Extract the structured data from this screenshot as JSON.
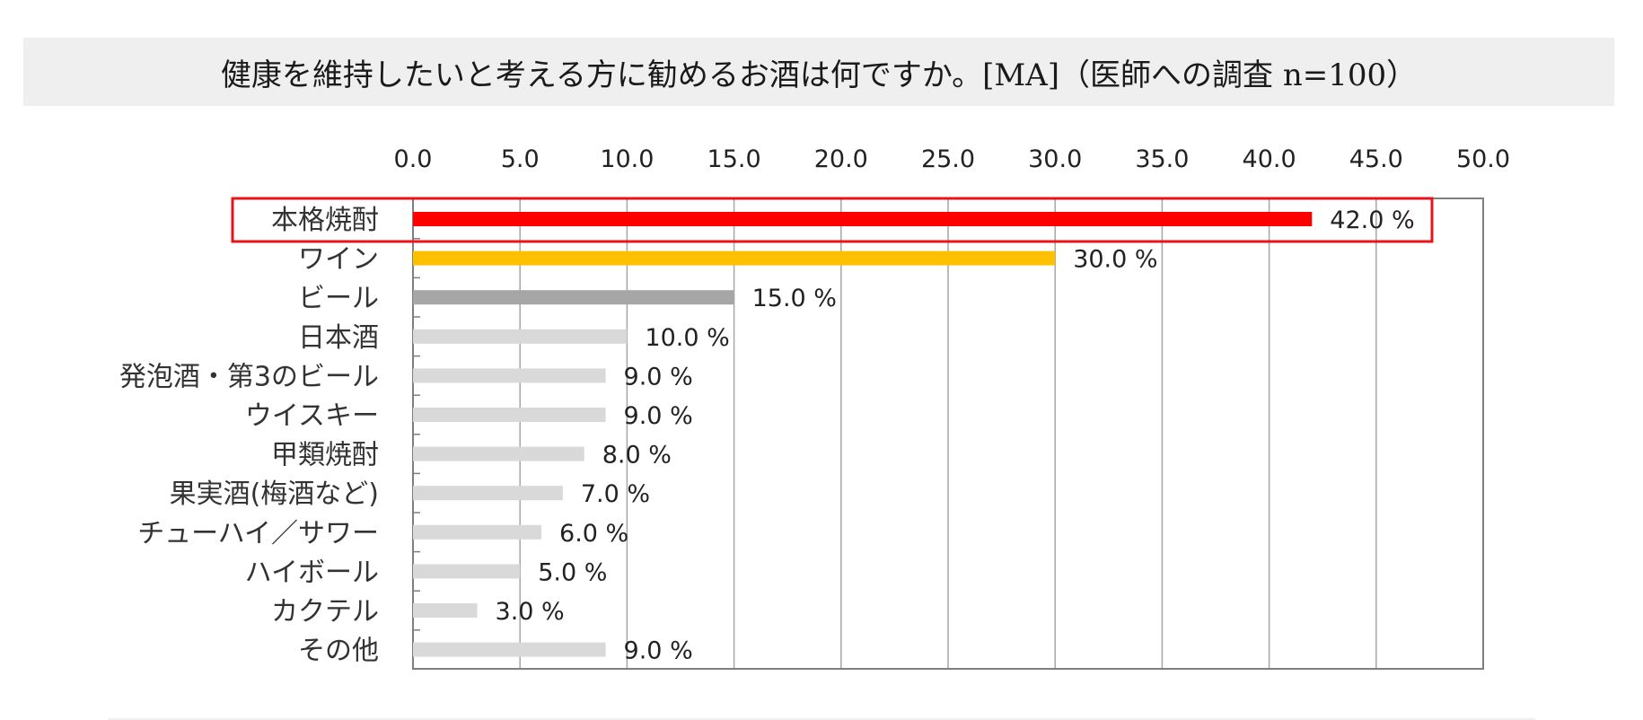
{
  "title": "健康を維持したいと考える方に勧めるお酒は何ですか。[MA]（医師への調査 n=100）",
  "colors": {
    "highlight_bar": "#ff0000",
    "second_bar": "#ffc000",
    "third_bar": "#a6a6a6",
    "other_bars": "#d9d9d9",
    "highlight_box": "#e8141c",
    "title_band": "#efefef",
    "grid": "#a6a6a6"
  },
  "chart_data": {
    "type": "bar",
    "orientation": "horizontal",
    "title": "健康を維持したいと考える方に勧めるお酒は何ですか。[MA]（医師への調査 n=100）",
    "xlim": [
      0,
      50
    ],
    "x_ticks": [
      "0.0",
      "5.0",
      "10.0",
      "15.0",
      "20.0",
      "25.0",
      "30.0",
      "35.0",
      "40.0",
      "45.0",
      "50.0"
    ],
    "x_axis_position": "top",
    "grid": true,
    "unit": "%",
    "highlighted_category": "本格焼酎",
    "categories": [
      "本格焼酎",
      "ワイン",
      "ビール",
      "日本酒",
      "発泡酒・第3のビール",
      "ウイスキー",
      "甲類焼酎",
      "果実酒(梅酒など)",
      "チューハイ／サワー",
      "ハイボール",
      "カクテル",
      "その他"
    ],
    "values": [
      42.0,
      30.0,
      15.0,
      10.0,
      9.0,
      9.0,
      8.0,
      7.0,
      6.0,
      5.0,
      3.0,
      9.0
    ],
    "value_labels": [
      "42.0 %",
      "30.0 %",
      "15.0 %",
      "10.0 %",
      "9.0 %",
      "9.0 %",
      "8.0 %",
      "7.0 %",
      "6.0 %",
      "5.0 %",
      "3.0 %",
      "9.0 %"
    ]
  }
}
